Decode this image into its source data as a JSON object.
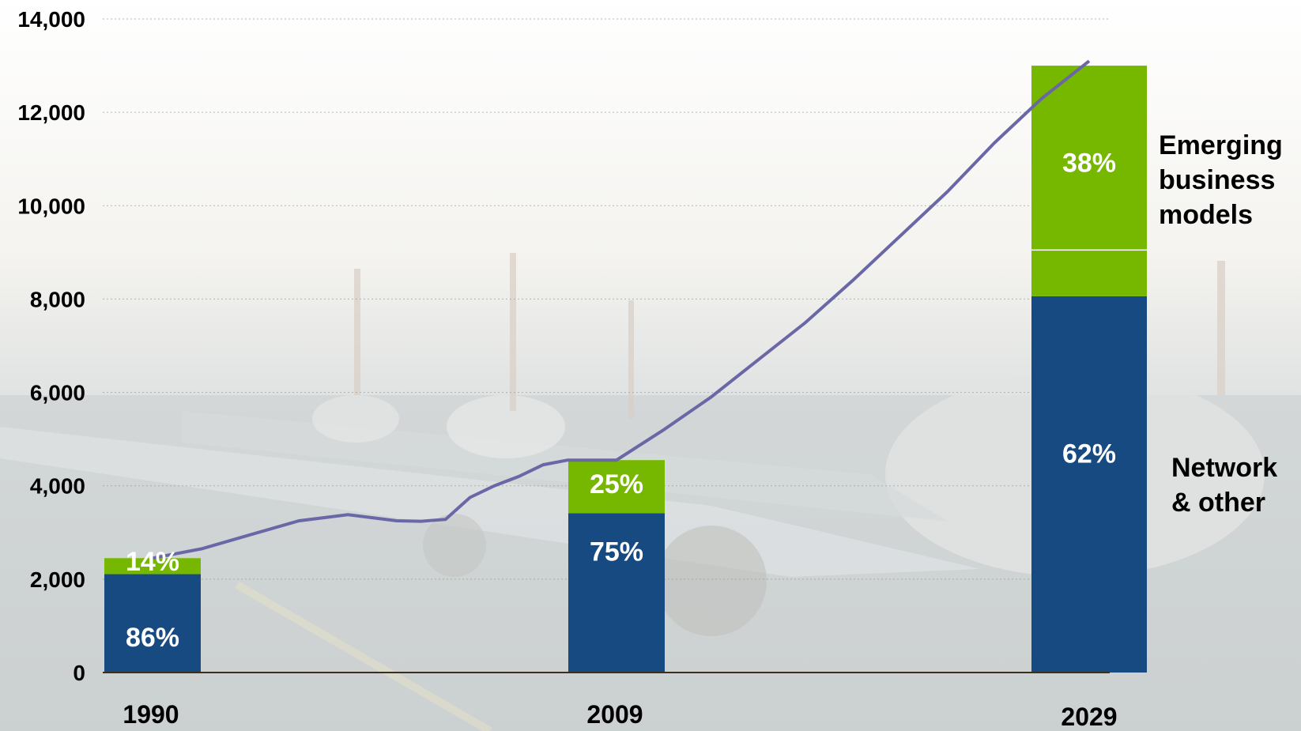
{
  "chart_data": {
    "type": "bar",
    "stacked": true,
    "categories": [
      "1990",
      "2009",
      "2029"
    ],
    "totals": [
      2450,
      4550,
      13000
    ],
    "series": [
      {
        "name": "Network & other",
        "color": "#174a80",
        "values": [
          2107,
          3413,
          8060
        ],
        "labels": [
          "86%",
          "75%",
          "62%"
        ]
      },
      {
        "name": "Emerging business models",
        "color": "#76b800",
        "values": [
          343,
          1137,
          4940
        ],
        "labels": [
          "14%",
          "25%",
          "38%"
        ]
      }
    ],
    "line": {
      "color": "#6a67a6",
      "x": [
        1990,
        1992,
        1994,
        1996,
        1998,
        2000,
        2001,
        2002,
        2003,
        2004,
        2005,
        2006,
        2007,
        2008,
        2009,
        2011,
        2013,
        2015,
        2017,
        2019,
        2021,
        2023,
        2025,
        2027,
        2029
      ],
      "y": [
        2450,
        2650,
        2950,
        3250,
        3380,
        3250,
        3240,
        3280,
        3750,
        4000,
        4200,
        4450,
        4550,
        4550,
        4550,
        5200,
        5900,
        6700,
        7500,
        8400,
        9350,
        10300,
        11350,
        12300,
        13100
      ]
    },
    "ylim": [
      0,
      14000
    ],
    "yticks": [
      "0",
      "2,000",
      "4,000",
      "6,000",
      "8,000",
      "10,000",
      "12,000",
      "14,000"
    ],
    "grid": true
  },
  "annotations": {
    "emerging": "Emerging\nbusiness\nmodels",
    "network": "Network\n& other"
  }
}
